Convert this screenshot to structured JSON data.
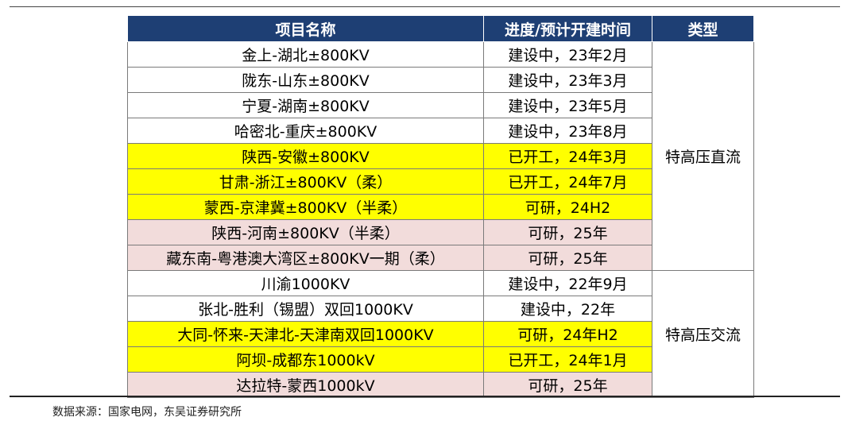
{
  "table": {
    "headers": [
      "项目名称",
      "进度/预计开建时间",
      "类型"
    ],
    "rows": [
      {
        "project": "金上-湖北±800KV",
        "progress": "建设中，23年2月",
        "highlight": "none"
      },
      {
        "project": "陇东-山东±800KV",
        "progress": "建设中，23年3月",
        "highlight": "none"
      },
      {
        "project": "宁夏-湖南±800KV",
        "progress": "建设中，23年5月",
        "highlight": "none"
      },
      {
        "project": "哈密北-重庆±800KV",
        "progress": "建设中，23年8月",
        "highlight": "none"
      },
      {
        "project": "陕西-安徽±800KV",
        "progress": "已开工，24年3月",
        "highlight": "yellow"
      },
      {
        "project": "甘肃-浙江±800KV（柔）",
        "progress": "已开工，24年7月",
        "highlight": "yellow"
      },
      {
        "project": "蒙西-京津冀±800KV（半柔）",
        "progress": "可研，24H2",
        "highlight": "yellow"
      },
      {
        "project": "陕西-河南±800KV（半柔）",
        "progress": "可研，25年",
        "highlight": "pink"
      },
      {
        "project": "藏东南-粤港澳大湾区±800KV一期（柔）",
        "progress": "可研，25年",
        "highlight": "pink"
      },
      {
        "project": "川渝1000KV",
        "progress": "建设中，22年9月",
        "highlight": "none"
      },
      {
        "project": "张北-胜利（锡盟）双回1000KV",
        "progress": "建设中，22年",
        "highlight": "none"
      },
      {
        "project": "大同-怀来-天津北-天津南双回1000KV",
        "progress": "可研，24年H2",
        "highlight": "yellow"
      },
      {
        "project": "阿坝-成都东1000kV",
        "progress": "已开工，24年1月",
        "highlight": "yellow"
      },
      {
        "project": "达拉特-蒙西1000kV",
        "progress": "可研，25年",
        "highlight": "pink"
      }
    ],
    "type_groups": [
      {
        "label": "特高压直流",
        "rows": 9
      },
      {
        "label": "特高压交流",
        "rows": 5
      }
    ],
    "colors": {
      "header_bg": "#1e3f74",
      "yellow": "#ffff00",
      "pink": "#f2dcdb"
    }
  },
  "source_note": "数据来源：国家电网，东吴证券研究所"
}
